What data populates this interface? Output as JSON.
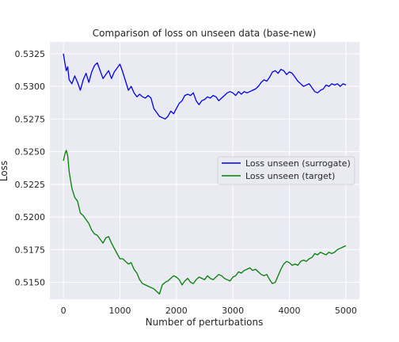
{
  "chart_data": {
    "type": "line",
    "title": "Comparison of loss on unseen data (base-new)",
    "xlabel": "Number of perturbations",
    "ylabel": "Loss",
    "xlim": [
      -240,
      5240
    ],
    "ylim": [
      0.5137,
      0.5334
    ],
    "xticks": [
      0,
      1000,
      2000,
      3000,
      4000,
      5000
    ],
    "xtick_labels": [
      "0",
      "1000",
      "2000",
      "3000",
      "4000",
      "5000"
    ],
    "yticks": [
      0.515,
      0.5175,
      0.52,
      0.5225,
      0.525,
      0.5275,
      0.53,
      0.5325
    ],
    "ytick_labels": [
      "0.5150",
      "0.5175",
      "0.5200",
      "0.5225",
      "0.5250",
      "0.5275",
      "0.5300",
      "0.5325"
    ],
    "grid": true,
    "legend_position": "center-right",
    "background": "#eaeaf2",
    "series": [
      {
        "name": "Loss unseen (surrogate)",
        "color": "#0000ee",
        "x": [
          0,
          25,
          50,
          75,
          100,
          150,
          200,
          250,
          300,
          350,
          400,
          450,
          500,
          550,
          600,
          650,
          700,
          750,
          800,
          850,
          900,
          950,
          1000,
          1050,
          1100,
          1150,
          1200,
          1250,
          1300,
          1350,
          1400,
          1450,
          1500,
          1550,
          1600,
          1650,
          1700,
          1750,
          1800,
          1850,
          1900,
          1950,
          2000,
          2050,
          2100,
          2150,
          2200,
          2250,
          2300,
          2350,
          2400,
          2450,
          2500,
          2550,
          2600,
          2650,
          2700,
          2750,
          2800,
          2850,
          2900,
          2950,
          3000,
          3050,
          3100,
          3150,
          3200,
          3250,
          3300,
          3350,
          3400,
          3450,
          3500,
          3550,
          3600,
          3650,
          3700,
          3750,
          3800,
          3850,
          3900,
          3950,
          4000,
          4050,
          4100,
          4150,
          4200,
          4250,
          4300,
          4350,
          4400,
          4450,
          4500,
          4550,
          4600,
          4650,
          4700,
          4750,
          4800,
          4850,
          4900,
          4950,
          5000
        ],
        "values": [
          0.5325,
          0.5318,
          0.5312,
          0.5315,
          0.5305,
          0.5302,
          0.5308,
          0.5303,
          0.5297,
          0.5305,
          0.531,
          0.5303,
          0.5311,
          0.5316,
          0.5318,
          0.5312,
          0.5306,
          0.5309,
          0.5312,
          0.5306,
          0.5311,
          0.5314,
          0.5317,
          0.5311,
          0.5304,
          0.5297,
          0.53,
          0.5295,
          0.5292,
          0.5294,
          0.5292,
          0.5291,
          0.5293,
          0.5291,
          0.5283,
          0.528,
          0.5277,
          0.5276,
          0.5275,
          0.5277,
          0.5281,
          0.5279,
          0.5283,
          0.5287,
          0.5289,
          0.5293,
          0.5294,
          0.5293,
          0.5295,
          0.5289,
          0.5286,
          0.5289,
          0.529,
          0.5292,
          0.5291,
          0.5293,
          0.5292,
          0.5289,
          0.5291,
          0.5293,
          0.5295,
          0.5296,
          0.5295,
          0.5293,
          0.5296,
          0.5294,
          0.5296,
          0.5295,
          0.5296,
          0.5297,
          0.5298,
          0.53,
          0.5303,
          0.5305,
          0.5304,
          0.5307,
          0.5311,
          0.5312,
          0.531,
          0.5313,
          0.5312,
          0.5309,
          0.5311,
          0.531,
          0.5307,
          0.5304,
          0.5302,
          0.53,
          0.5301,
          0.5302,
          0.5299,
          0.5296,
          0.5295,
          0.5297,
          0.5298,
          0.5301,
          0.53,
          0.5302,
          0.5301,
          0.5302,
          0.53,
          0.5302,
          0.5301
        ]
      },
      {
        "name": "Loss unseen (target)",
        "color": "#008000",
        "x": [
          0,
          25,
          50,
          75,
          100,
          150,
          200,
          250,
          300,
          350,
          400,
          450,
          500,
          550,
          600,
          650,
          700,
          750,
          800,
          850,
          900,
          950,
          1000,
          1050,
          1100,
          1150,
          1200,
          1250,
          1300,
          1350,
          1400,
          1450,
          1500,
          1550,
          1600,
          1650,
          1700,
          1750,
          1800,
          1850,
          1900,
          1950,
          2000,
          2050,
          2100,
          2150,
          2200,
          2250,
          2300,
          2350,
          2400,
          2450,
          2500,
          2550,
          2600,
          2650,
          2700,
          2750,
          2800,
          2850,
          2900,
          2950,
          3000,
          3050,
          3100,
          3150,
          3200,
          3250,
          3300,
          3350,
          3400,
          3450,
          3500,
          3550,
          3600,
          3650,
          3700,
          3750,
          3800,
          3850,
          3900,
          3950,
          4000,
          4050,
          4100,
          4150,
          4200,
          4250,
          4300,
          4350,
          4400,
          4450,
          4500,
          4550,
          4600,
          4650,
          4700,
          4750,
          4800,
          4850,
          4900,
          4950,
          5000
        ],
        "values": [
          0.5243,
          0.5248,
          0.5251,
          0.5247,
          0.5235,
          0.5222,
          0.5215,
          0.5212,
          0.5203,
          0.5201,
          0.5198,
          0.5195,
          0.519,
          0.5187,
          0.5186,
          0.5183,
          0.518,
          0.5184,
          0.5185,
          0.518,
          0.5176,
          0.5172,
          0.5168,
          0.5168,
          0.5166,
          0.5164,
          0.5165,
          0.516,
          0.5157,
          0.5152,
          0.5149,
          0.5148,
          0.5147,
          0.5146,
          0.5145,
          0.5143,
          0.5141,
          0.5148,
          0.515,
          0.5151,
          0.5153,
          0.5155,
          0.5154,
          0.5152,
          0.5148,
          0.5151,
          0.5153,
          0.515,
          0.5149,
          0.5152,
          0.5154,
          0.5153,
          0.5152,
          0.5155,
          0.5153,
          0.5152,
          0.5154,
          0.5156,
          0.5155,
          0.5153,
          0.5152,
          0.5151,
          0.5154,
          0.5155,
          0.5158,
          0.5157,
          0.5159,
          0.516,
          0.5161,
          0.5159,
          0.516,
          0.5158,
          0.5156,
          0.5155,
          0.5156,
          0.5152,
          0.5149,
          0.515,
          0.5155,
          0.516,
          0.5164,
          0.5166,
          0.5165,
          0.5163,
          0.5164,
          0.5163,
          0.5166,
          0.5167,
          0.5166,
          0.5168,
          0.5169,
          0.5172,
          0.5171,
          0.5173,
          0.5172,
          0.5171,
          0.5173,
          0.5172,
          0.5173,
          0.5175,
          0.5176,
          0.5177,
          0.5178
        ]
      }
    ]
  }
}
